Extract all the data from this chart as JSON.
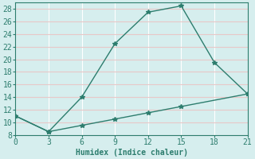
{
  "line1_x": [
    0,
    3,
    6,
    9,
    12,
    15,
    18,
    21
  ],
  "line1_y": [
    11,
    8.5,
    14,
    22.5,
    27.5,
    28.5,
    19.5,
    14.5
  ],
  "line2_x": [
    0,
    3,
    6,
    9,
    12,
    15,
    21
  ],
  "line2_y": [
    11,
    8.5,
    9.5,
    10.5,
    11.5,
    12.5,
    14.5
  ],
  "line_color": "#2d7d6e",
  "bg_color": "#d6eeee",
  "grid_major_color": "#ffffff",
  "grid_minor_color": "#e8c8c8",
  "xlabel": "Humidex (Indice chaleur)",
  "xlim": [
    0,
    21
  ],
  "ylim": [
    8,
    29
  ],
  "xticks": [
    0,
    3,
    6,
    9,
    12,
    15,
    18,
    21
  ],
  "yticks": [
    8,
    10,
    12,
    14,
    16,
    18,
    20,
    22,
    24,
    26,
    28
  ],
  "marker": "*",
  "linewidth": 1.0,
  "markersize": 4,
  "tick_labelsize": 7,
  "xlabel_fontsize": 7
}
